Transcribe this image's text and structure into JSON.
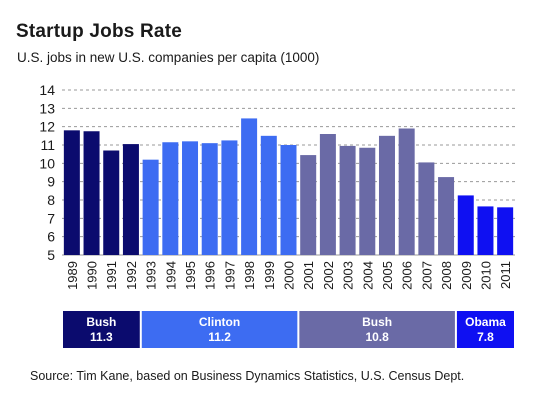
{
  "chart_data": {
    "type": "bar",
    "title": "Startup Jobs Rate",
    "subtitle": "U.S. jobs in new U.S. companies per capita (1000)",
    "xlabel": "",
    "ylabel": "",
    "ylim": [
      5,
      14
    ],
    "yticks": [
      "5",
      "6",
      "7",
      "8",
      "9",
      "10",
      "11",
      "12",
      "13",
      "14"
    ],
    "grid": true,
    "categories": [
      "1989",
      "1990",
      "1991",
      "1992",
      "1993",
      "1994",
      "1995",
      "1996",
      "1997",
      "1998",
      "1999",
      "2000",
      "2001",
      "2002",
      "2003",
      "2004",
      "2005",
      "2006",
      "2007",
      "2008",
      "2009",
      "2010",
      "2011"
    ],
    "values": [
      11.8,
      11.75,
      10.7,
      11.05,
      10.2,
      11.15,
      11.2,
      11.1,
      11.25,
      12.45,
      11.5,
      11.0,
      10.45,
      11.6,
      10.95,
      10.85,
      11.5,
      11.9,
      10.05,
      9.25,
      8.25,
      7.65,
      7.6
    ],
    "administrations": [
      {
        "name": "Bush",
        "average": "11.3",
        "start": 0,
        "end": 3,
        "color": "#0b0b6e"
      },
      {
        "name": "Clinton",
        "average": "11.2",
        "start": 4,
        "end": 11,
        "color": "#3d6cf2"
      },
      {
        "name": "Bush",
        "average": "10.8",
        "start": 12,
        "end": 19,
        "color": "#6a6aa6"
      },
      {
        "name": "Obama",
        "average": "7.8",
        "start": 20,
        "end": 22,
        "color": "#0f10f2"
      }
    ]
  },
  "source": "Source: Tim Kane, based on Business Dynamics Statistics, U.S. Census Dept."
}
